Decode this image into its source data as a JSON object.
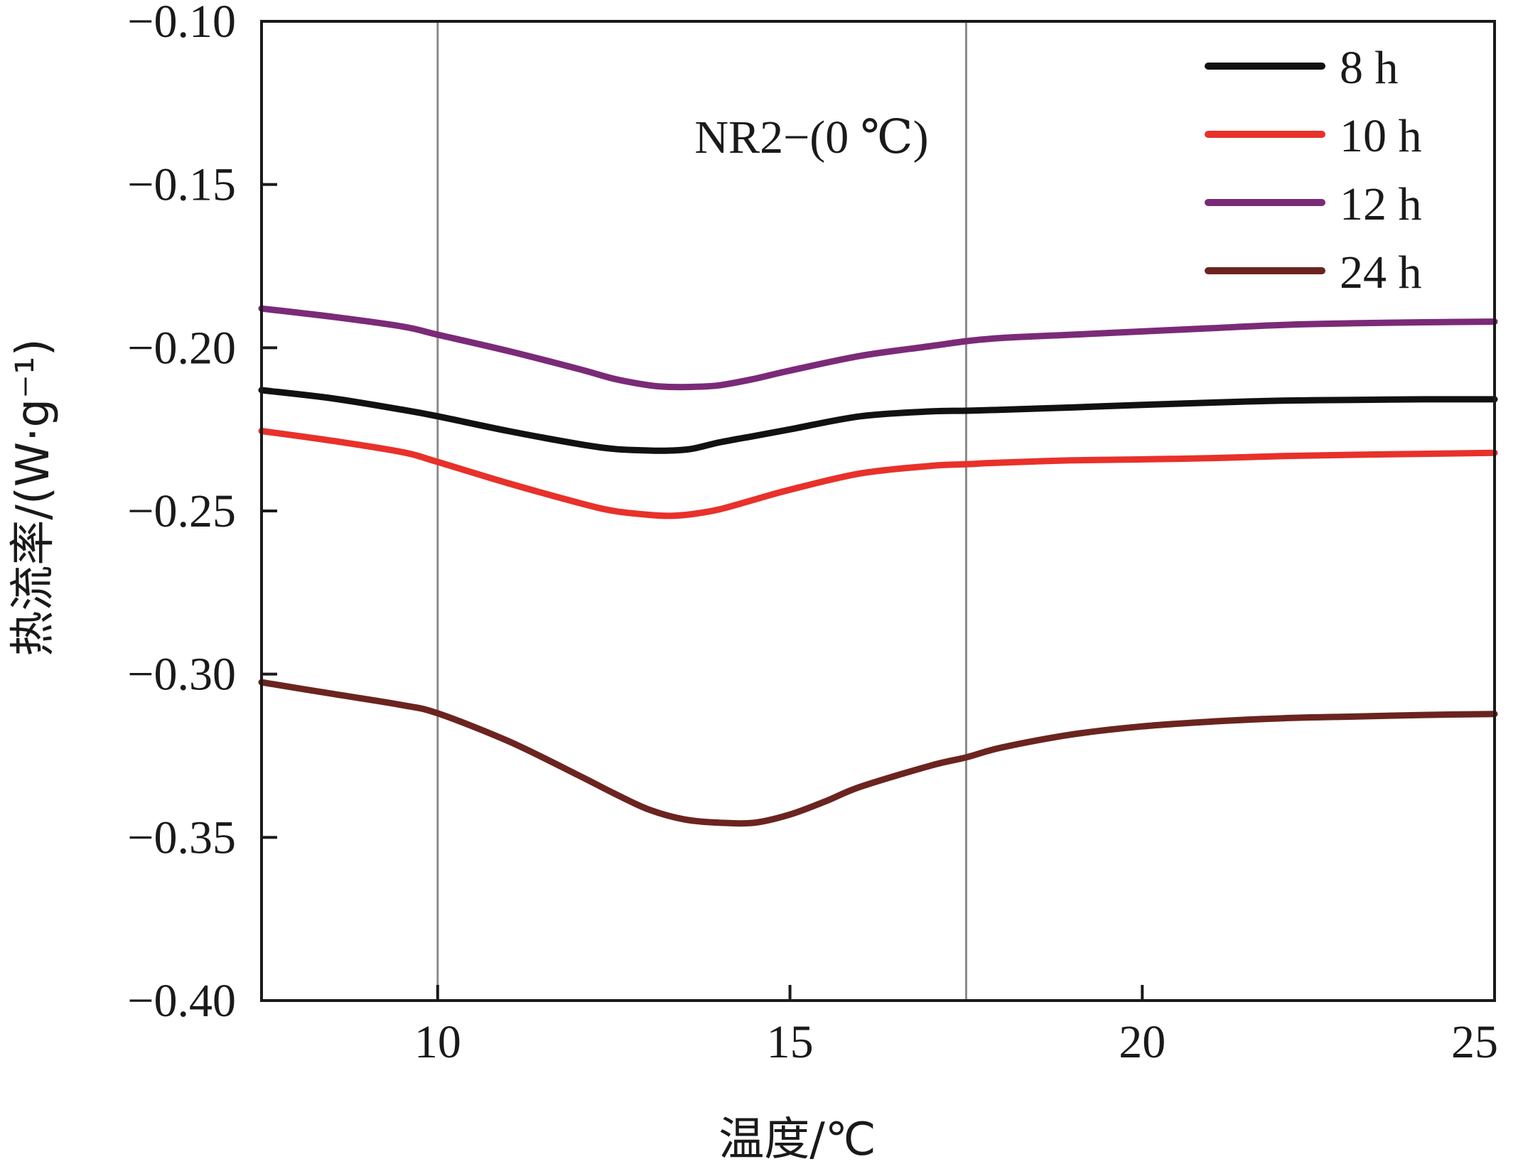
{
  "chart_data": {
    "type": "line",
    "title": "",
    "xlabel": "温度/℃",
    "ylabel": "热流率/(W·g⁻¹)",
    "xlim": [
      7.5,
      25
    ],
    "ylim": [
      -0.4,
      -0.1
    ],
    "xticks": [
      10,
      15,
      20,
      25
    ],
    "xtick_labels": [
      "10",
      "15",
      "20",
      "25"
    ],
    "yticks": [
      -0.1,
      -0.15,
      -0.2,
      -0.25,
      -0.3,
      -0.35,
      -0.4
    ],
    "ytick_labels": [
      "−0.10",
      "−0.15",
      "−0.20",
      "−0.25",
      "−0.30",
      "−0.35",
      "−0.40"
    ],
    "vlines": [
      10,
      17.5
    ],
    "annotation": "NR2−(0 ℃)",
    "legend_position": "top-right",
    "grid": false,
    "series": [
      {
        "name": "8 h",
        "color": "#111111",
        "x": [
          7.5,
          8.5,
          9.5,
          10,
          11,
          12,
          12.5,
          13,
          13.3,
          13.6,
          14,
          14.5,
          15,
          16,
          17,
          17.5,
          18,
          19,
          20,
          21,
          22,
          23,
          24,
          25
        ],
        "y": [
          -0.213,
          -0.2155,
          -0.219,
          -0.221,
          -0.2255,
          -0.2295,
          -0.231,
          -0.2315,
          -0.2315,
          -0.231,
          -0.229,
          -0.227,
          -0.225,
          -0.221,
          -0.2195,
          -0.2193,
          -0.219,
          -0.2183,
          -0.2175,
          -0.2168,
          -0.2162,
          -0.216,
          -0.2158,
          -0.2158
        ]
      },
      {
        "name": "10 h",
        "color": "#e8312a",
        "x": [
          7.5,
          8.5,
          9.5,
          10,
          11,
          12,
          12.5,
          13,
          13.3,
          13.6,
          14,
          14.5,
          15,
          16,
          17,
          17.5,
          18,
          19,
          20,
          21,
          22,
          23,
          24,
          25
        ],
        "y": [
          -0.2255,
          -0.2285,
          -0.232,
          -0.235,
          -0.2415,
          -0.2475,
          -0.25,
          -0.2512,
          -0.2515,
          -0.251,
          -0.2495,
          -0.2465,
          -0.2435,
          -0.2385,
          -0.2362,
          -0.2357,
          -0.2352,
          -0.2345,
          -0.2342,
          -0.2338,
          -0.2332,
          -0.2328,
          -0.2325,
          -0.2322
        ]
      },
      {
        "name": "12 h",
        "color": "#7b2a78",
        "x": [
          7.5,
          8.5,
          9.5,
          10,
          11,
          12,
          12.5,
          13,
          13.3,
          13.6,
          14,
          14.5,
          15,
          16,
          17,
          17.5,
          18,
          19,
          20,
          21,
          22,
          23,
          24,
          25
        ],
        "y": [
          -0.188,
          -0.1905,
          -0.1935,
          -0.196,
          -0.201,
          -0.2065,
          -0.2095,
          -0.2115,
          -0.212,
          -0.212,
          -0.2115,
          -0.2095,
          -0.207,
          -0.2025,
          -0.1995,
          -0.198,
          -0.197,
          -0.196,
          -0.195,
          -0.194,
          -0.193,
          -0.1925,
          -0.1922,
          -0.192
        ]
      },
      {
        "name": "24 h",
        "color": "#6b2420",
        "x": [
          7.5,
          8.5,
          9.5,
          10,
          11,
          12,
          12.5,
          13,
          13.5,
          14,
          14.5,
          15,
          15.5,
          16,
          17,
          17.5,
          18,
          19,
          20,
          21,
          22,
          23,
          24,
          25
        ],
        "y": [
          -0.3025,
          -0.306,
          -0.3095,
          -0.312,
          -0.3205,
          -0.331,
          -0.3365,
          -0.3415,
          -0.3445,
          -0.3455,
          -0.3455,
          -0.343,
          -0.339,
          -0.3345,
          -0.328,
          -0.3255,
          -0.3225,
          -0.3185,
          -0.316,
          -0.3145,
          -0.3135,
          -0.313,
          -0.3125,
          -0.3122
        ]
      }
    ]
  }
}
